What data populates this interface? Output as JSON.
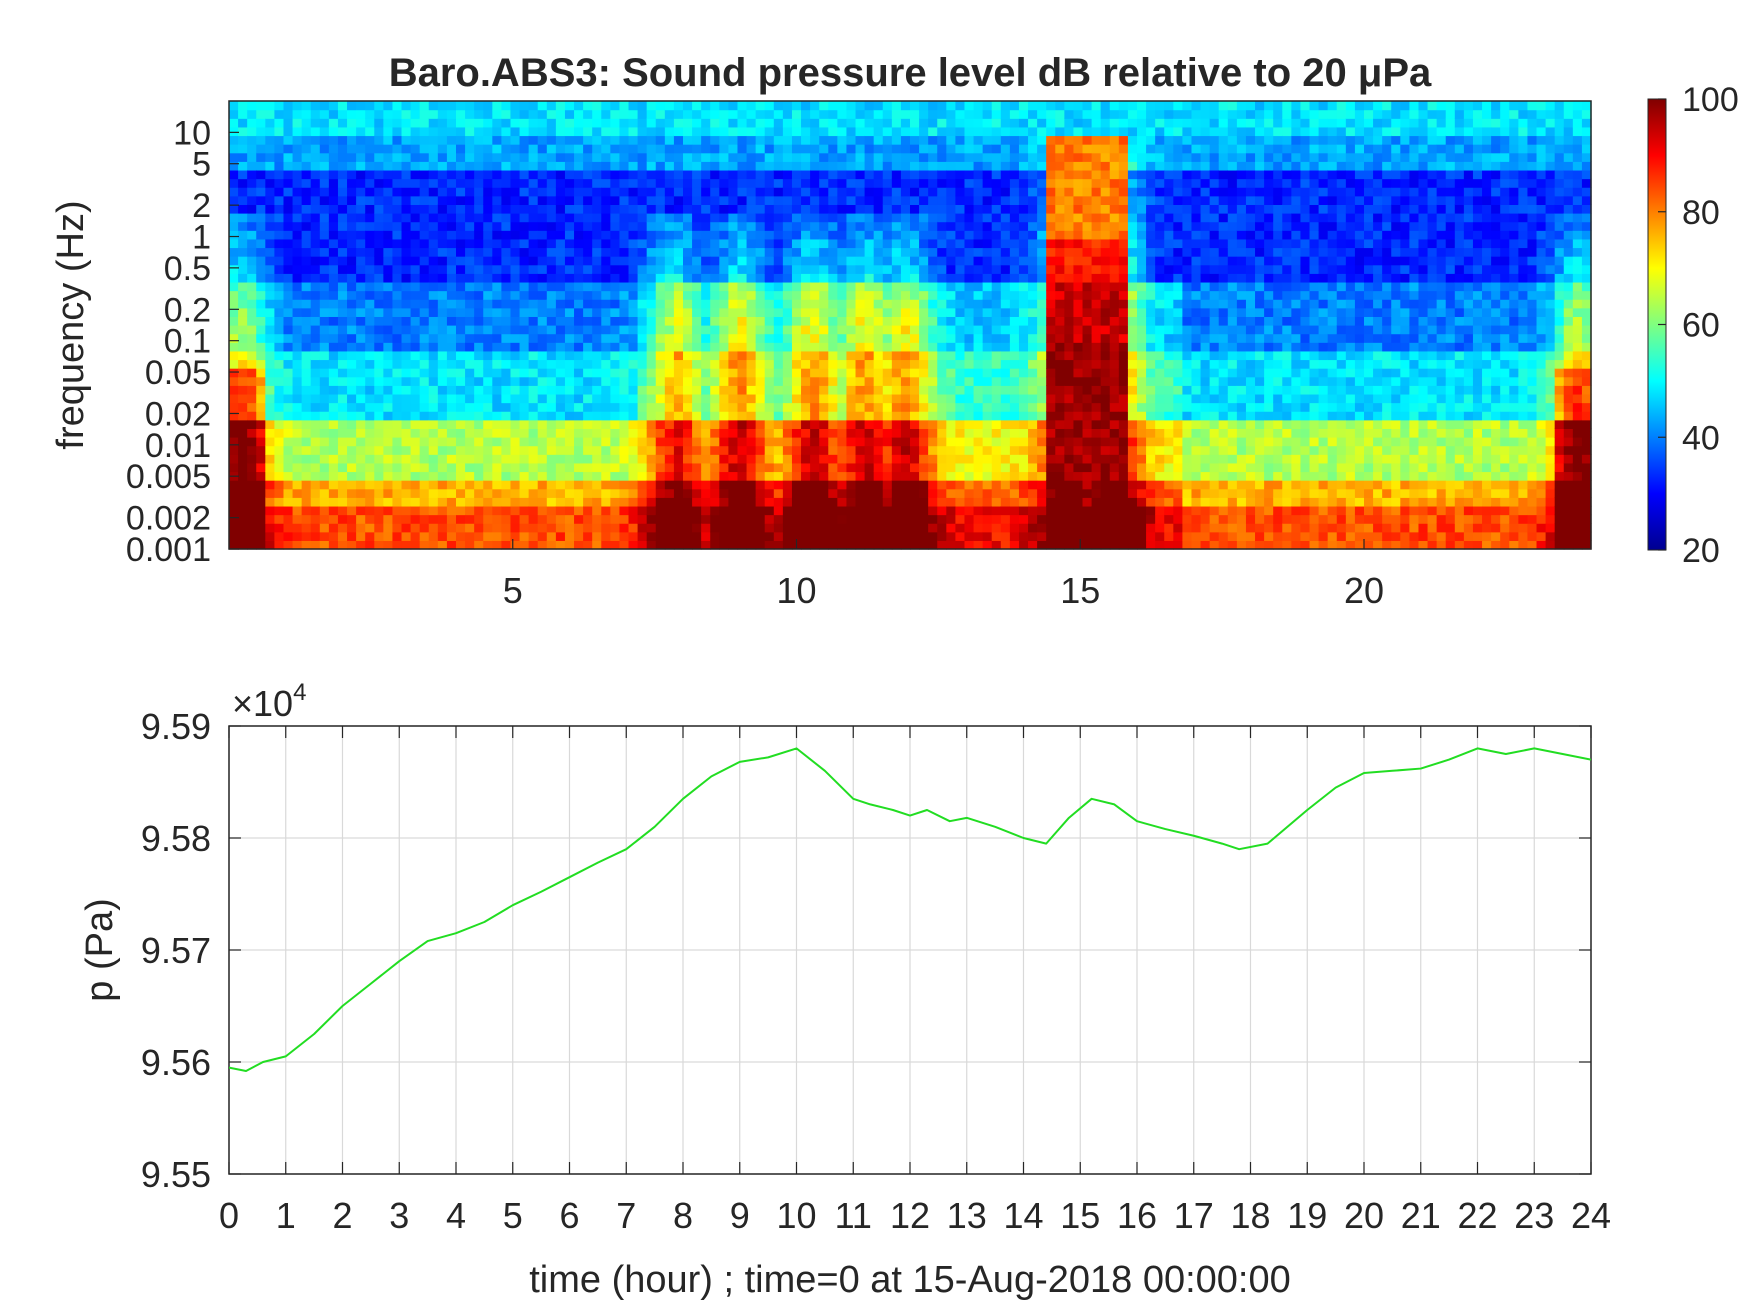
{
  "chart_data": [
    {
      "type": "heatmap",
      "title": "Baro.ABS3: Sound pressure level dB relative to 20 μPa",
      "ylabel": "frequency (Hz)",
      "xlabel": "",
      "y_scale": "log",
      "xlim": [
        0,
        24
      ],
      "ylim": [
        0.001,
        20
      ],
      "x_ticks": [
        5,
        10,
        15,
        20
      ],
      "x_tick_labels": [
        "5",
        "10",
        "15",
        "20"
      ],
      "y_ticks": [
        0.001,
        0.002,
        0.005,
        0.01,
        0.02,
        0.05,
        0.1,
        0.2,
        0.5,
        1,
        2,
        5,
        10
      ],
      "y_tick_labels": [
        "0.001",
        "0.002",
        "0.005",
        "0.01",
        "0.02",
        "0.05",
        "0.1",
        "0.2",
        "0.5",
        "1",
        "2",
        "5",
        "10"
      ],
      "colormap": "jet",
      "colorbar": {
        "range": [
          20,
          100
        ],
        "ticks": [
          20,
          40,
          60,
          80,
          100
        ],
        "tick_labels": [
          "20",
          "40",
          "60",
          "80",
          "100"
        ]
      },
      "high_energy_events_hour": [
        0.2,
        7.8,
        9.0,
        10.3,
        11.2,
        11.9,
        14.8,
        15.6,
        23.8
      ],
      "dominant_event": {
        "x_range": [
          14.4,
          15.8
        ],
        "level_db": 90
      }
    },
    {
      "type": "line",
      "xlabel": "time (hour) ; time=0 at 15-Aug-2018 00:00:00",
      "ylabel": "p (Pa)",
      "y_exponent_label": "×10",
      "y_exponent_power": "4",
      "xlim": [
        0,
        24
      ],
      "ylim": [
        95500,
        95900
      ],
      "x_ticks": [
        0,
        1,
        2,
        3,
        4,
        5,
        6,
        7,
        8,
        9,
        10,
        11,
        12,
        13,
        14,
        15,
        16,
        17,
        18,
        19,
        20,
        21,
        22,
        23,
        24
      ],
      "x_tick_labels": [
        "0",
        "1",
        "2",
        "3",
        "4",
        "5",
        "6",
        "7",
        "8",
        "9",
        "10",
        "11",
        "12",
        "13",
        "14",
        "15",
        "16",
        "17",
        "18",
        "19",
        "20",
        "21",
        "22",
        "23",
        "24"
      ],
      "y_ticks": [
        95500,
        95600,
        95700,
        95800,
        95900
      ],
      "y_tick_labels": [
        "9.55",
        "9.56",
        "9.57",
        "9.58",
        "9.59"
      ],
      "grid": true,
      "line_color": "#22dd22",
      "series": [
        {
          "x": [
            0,
            0.3,
            0.6,
            1,
            1.5,
            2,
            2.5,
            3,
            3.5,
            4,
            4.5,
            5,
            5.5,
            6,
            6.5,
            7,
            7.5,
            8,
            8.5,
            9,
            9.5,
            10,
            10.5,
            11,
            11.3,
            11.7,
            12,
            12.3,
            12.7,
            13,
            13.5,
            14,
            14.4,
            14.8,
            15.2,
            15.6,
            16,
            16.5,
            17,
            17.5,
            17.8,
            18.3,
            19,
            19.5,
            20,
            20.5,
            21,
            21.5,
            22,
            22.5,
            23,
            23.5,
            24
          ],
          "y": [
            95595,
            95592,
            95600,
            95605,
            95625,
            95650,
            95670,
            95690,
            95708,
            95715,
            95725,
            95740,
            95752,
            95765,
            95778,
            95790,
            95810,
            95835,
            95855,
            95868,
            95872,
            95880,
            95860,
            95835,
            95830,
            95825,
            95820,
            95825,
            95815,
            95818,
            95810,
            95800,
            95795,
            95818,
            95835,
            95830,
            95815,
            95808,
            95802,
            95795,
            95790,
            95795,
            95825,
            95845,
            95858,
            95860,
            95862,
            95870,
            95880,
            95875,
            95880,
            95875,
            95870
          ]
        }
      ]
    }
  ]
}
